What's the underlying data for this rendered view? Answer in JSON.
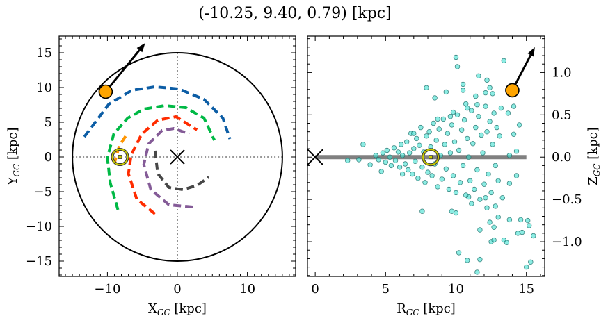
{
  "chart_data": [
    {
      "type": "line",
      "title": "(-10.25, 9.40, 0.79) [kpc]",
      "xlabel": "X",
      "xlabel_sub": "GC",
      "xlabel_unit": " [kpc]",
      "ylabel": "Y",
      "ylabel_sub": "GC",
      "ylabel_unit": " [kpc]",
      "xlim": [
        -16.9,
        16.9
      ],
      "ylim": [
        -17.2,
        17.4
      ],
      "xticks": [
        -10,
        0,
        10
      ],
      "xtick_labels": [
        "−10",
        "0",
        "10"
      ],
      "yticks": [
        15,
        10,
        5,
        0,
        -5,
        -10,
        -15
      ],
      "ytick_labels": [
        "15",
        "10",
        "5",
        "0",
        "−5",
        "−10",
        "−15"
      ],
      "boundary_circle_radius": 15,
      "crosshair": "dotted",
      "center_marker": {
        "x": 0,
        "y": 0,
        "symbol": "x"
      },
      "sun_marker": {
        "x": -8.2,
        "y": 0,
        "color": "#c8c800"
      },
      "object_marker": {
        "x": -10.25,
        "y": 9.4,
        "color": "#ffa500"
      },
      "velocity_arrow": {
        "from": [
          -10.25,
          9.4
        ],
        "to": [
          -4.6,
          16.4
        ]
      },
      "series": [
        {
          "color": "#0c5da5",
          "points": [
            [
              -13.3,
              2.9
            ],
            [
              -9.8,
              7.6
            ],
            [
              -6.5,
              9.6
            ],
            [
              -3.2,
              10.1
            ],
            [
              0.2,
              9.8
            ],
            [
              3.8,
              8.3
            ],
            [
              6.5,
              5.6
            ],
            [
              7.5,
              2.6
            ]
          ]
        },
        {
          "color": "#00b945",
          "points": [
            [
              -8.5,
              -7.6
            ],
            [
              -9.6,
              -3.7
            ],
            [
              -10.0,
              -0.1
            ],
            [
              -9.1,
              3.3
            ],
            [
              -7.1,
              5.6
            ],
            [
              -4.8,
              6.9
            ],
            [
              -1.8,
              7.4
            ],
            [
              1.2,
              7.1
            ],
            [
              3.8,
              5.6
            ],
            [
              5.3,
              2.4
            ]
          ]
        },
        {
          "color": "#ff9500",
          "points": [
            [
              -7.4,
              3.0
            ],
            [
              -8.3,
              1.6
            ],
            [
              -9.0,
              -0.9
            ]
          ]
        },
        {
          "color": "#ff2c00",
          "points": [
            [
              -3.2,
              -8.2
            ],
            [
              -5.8,
              -6.1
            ],
            [
              -7.0,
              -2.4
            ],
            [
              -6.6,
              0.3
            ],
            [
              -5.1,
              3.3
            ],
            [
              -2.8,
              5.3
            ],
            [
              -0.2,
              5.8
            ],
            [
              2.8,
              3.9
            ]
          ]
        },
        {
          "color": "#845b97",
          "points": [
            [
              2.2,
              -7.2
            ],
            [
              -1.2,
              -6.9
            ],
            [
              -3.8,
              -4.7
            ],
            [
              -4.8,
              -1.1
            ],
            [
              -4.1,
              1.9
            ],
            [
              -2.2,
              3.8
            ],
            [
              -0.5,
              4.1
            ],
            [
              1.7,
              3.3
            ]
          ]
        },
        {
          "color": "#474747",
          "points": [
            [
              -3.2,
              0.9
            ],
            [
              -2.8,
              -2.4
            ],
            [
              -1.2,
              -4.4
            ],
            [
              0.8,
              -4.7
            ],
            [
              2.8,
              -4.1
            ],
            [
              4.5,
              -2.9
            ]
          ]
        }
      ]
    },
    {
      "type": "scatter",
      "xlabel": "R",
      "xlabel_sub": "GC",
      "xlabel_unit": " [kpc]",
      "ylabel": "Z",
      "ylabel_sub": "GC",
      "ylabel_unit": " [kpc]",
      "xlim": [
        -0.55,
        16.3
      ],
      "ylim": [
        -1.41,
        1.43
      ],
      "xticks": [
        0,
        5,
        10,
        15
      ],
      "xtick_labels": [
        "0",
        "5",
        "10",
        "15"
      ],
      "yticks": [
        1.0,
        0.5,
        0.0,
        -0.5,
        -1.0
      ],
      "ytick_labels": [
        "1.0",
        "0.5",
        "0.0",
        "−0.5",
        "−1.0"
      ],
      "ylabel_side": "right",
      "disk_line": {
        "from": 0,
        "to": 15,
        "z": 0,
        "color": "#808080"
      },
      "center_marker": {
        "x": 0,
        "y": 0,
        "symbol": "x"
      },
      "sun_marker": {
        "x": 8.2,
        "y": 0,
        "color": "#c8c800"
      },
      "object_marker": {
        "x": 14.0,
        "y": 0.79,
        "color": "#ffa500"
      },
      "velocity_arrow": {
        "from": [
          14.0,
          0.79
        ],
        "to": [
          15.6,
          1.3
        ]
      },
      "point_color": "#40e0d0",
      "points": [
        [
          10.0,
          1.18
        ],
        [
          10.1,
          1.07
        ],
        [
          13.4,
          1.14
        ],
        [
          11.6,
          0.96
        ],
        [
          12.2,
          0.91
        ],
        [
          7.9,
          0.82
        ],
        [
          9.3,
          0.77
        ],
        [
          8.5,
          0.7
        ],
        [
          10.5,
          0.86
        ],
        [
          10.5,
          0.79
        ],
        [
          12.4,
          0.82
        ],
        [
          12.6,
          0.75
        ],
        [
          12.1,
          0.76
        ],
        [
          11.4,
          0.72
        ],
        [
          10.7,
          0.63
        ],
        [
          14.1,
          0.6
        ],
        [
          9.8,
          0.53
        ],
        [
          13.7,
          0.52
        ],
        [
          14.5,
          0.38
        ],
        [
          14.1,
          0.27
        ],
        [
          14.3,
          0.07
        ],
        [
          13.8,
          0.02
        ],
        [
          3.4,
          0.15
        ],
        [
          2.3,
          -0.04
        ],
        [
          3.1,
          -0.03
        ],
        [
          3.9,
          -0.09
        ],
        [
          4.7,
          -0.17
        ],
        [
          7.6,
          -0.64
        ],
        [
          9.7,
          -0.64
        ],
        [
          10.0,
          -0.66
        ],
        [
          10.9,
          -0.47
        ],
        [
          11.1,
          -0.55
        ],
        [
          12.1,
          -0.48
        ],
        [
          13.3,
          -0.48
        ],
        [
          14.3,
          -0.22
        ],
        [
          13.8,
          -0.31
        ],
        [
          13.0,
          -0.71
        ],
        [
          12.4,
          -0.77
        ],
        [
          12.7,
          -0.83
        ],
        [
          13.8,
          -0.74
        ],
        [
          14.6,
          -0.74
        ],
        [
          15.1,
          -0.75
        ],
        [
          15.2,
          -0.81
        ],
        [
          15.5,
          -0.93
        ],
        [
          14.4,
          -0.9
        ],
        [
          14.7,
          -0.89
        ],
        [
          11.7,
          -0.86
        ],
        [
          12.5,
          -1.0
        ],
        [
          12.7,
          -0.98
        ],
        [
          13.4,
          -0.98
        ],
        [
          13.6,
          -1.01
        ],
        [
          10.2,
          -1.13
        ],
        [
          10.8,
          -1.22
        ],
        [
          11.7,
          -1.21
        ],
        [
          11.5,
          -1.36
        ],
        [
          15.0,
          -1.3
        ],
        [
          15.3,
          -1.24
        ],
        [
          4.3,
          0.02
        ],
        [
          4.5,
          -0.03
        ],
        [
          4.8,
          0.05
        ],
        [
          5.0,
          -0.06
        ],
        [
          5.1,
          0.08
        ],
        [
          5.3,
          0.0
        ],
        [
          5.4,
          -0.1
        ],
        [
          5.6,
          0.11
        ],
        [
          5.7,
          -0.04
        ],
        [
          5.9,
          0.06
        ],
        [
          6.0,
          -0.12
        ],
        [
          6.1,
          0.15
        ],
        [
          6.2,
          0.02
        ],
        [
          6.4,
          -0.08
        ],
        [
          6.5,
          0.18
        ],
        [
          6.6,
          -0.15
        ],
        [
          6.7,
          0.05
        ],
        [
          6.8,
          0.28
        ],
        [
          6.9,
          -0.2
        ],
        [
          7.0,
          0.1
        ],
        [
          7.1,
          -0.05
        ],
        [
          7.2,
          0.22
        ],
        [
          7.3,
          -0.25
        ],
        [
          7.4,
          0.14
        ],
        [
          7.5,
          0.35
        ],
        [
          7.6,
          -0.12
        ],
        [
          7.7,
          0.06
        ],
        [
          7.8,
          -0.3
        ],
        [
          7.9,
          0.25
        ],
        [
          8.0,
          -0.18
        ],
        [
          8.1,
          0.3
        ],
        [
          8.2,
          0.12
        ],
        [
          8.3,
          -0.22
        ],
        [
          8.4,
          0.4
        ],
        [
          8.5,
          -0.08
        ],
        [
          8.6,
          0.2
        ],
        [
          8.7,
          -0.35
        ],
        [
          8.8,
          0.33
        ],
        [
          8.9,
          0.02
        ],
        [
          9.0,
          -0.26
        ],
        [
          9.1,
          0.45
        ],
        [
          9.2,
          0.15
        ],
        [
          9.3,
          -0.14
        ],
        [
          9.4,
          0.28
        ],
        [
          9.5,
          -0.38
        ],
        [
          9.6,
          0.05
        ],
        [
          9.7,
          0.38
        ],
        [
          9.8,
          -0.22
        ],
        [
          9.9,
          0.18
        ],
        [
          10.0,
          -0.42
        ],
        [
          10.1,
          0.5
        ],
        [
          10.2,
          0.08
        ],
        [
          10.3,
          -0.3
        ],
        [
          10.4,
          0.32
        ],
        [
          10.5,
          -0.1
        ],
        [
          10.6,
          0.44
        ],
        [
          10.7,
          -0.45
        ],
        [
          10.8,
          0.22
        ],
        [
          10.9,
          0.0
        ],
        [
          11.0,
          -0.28
        ],
        [
          11.1,
          0.55
        ],
        [
          11.2,
          0.16
        ],
        [
          11.3,
          -0.38
        ],
        [
          11.4,
          0.35
        ],
        [
          11.5,
          -0.15
        ],
        [
          11.6,
          0.48
        ],
        [
          11.7,
          -0.5
        ],
        [
          11.8,
          0.26
        ],
        [
          11.9,
          0.05
        ],
        [
          12.0,
          -0.32
        ],
        [
          12.1,
          0.6
        ],
        [
          12.2,
          0.3
        ],
        [
          12.3,
          -0.2
        ],
        [
          12.4,
          0.42
        ],
        [
          12.5,
          -0.42
        ],
        [
          12.6,
          0.15
        ],
        [
          12.7,
          0.52
        ],
        [
          12.8,
          -0.1
        ],
        [
          12.9,
          0.35
        ],
        [
          13.0,
          -0.28
        ],
        [
          13.1,
          0.25
        ],
        [
          13.2,
          0.58
        ],
        [
          12.8,
          -0.58
        ],
        [
          12.2,
          -0.6
        ],
        [
          11.5,
          0.62
        ],
        [
          10.8,
          0.58
        ],
        [
          9.6,
          0.48
        ],
        [
          8.7,
          0.45
        ],
        [
          7.0,
          0.28
        ],
        [
          6.2,
          -0.2
        ]
      ]
    }
  ]
}
